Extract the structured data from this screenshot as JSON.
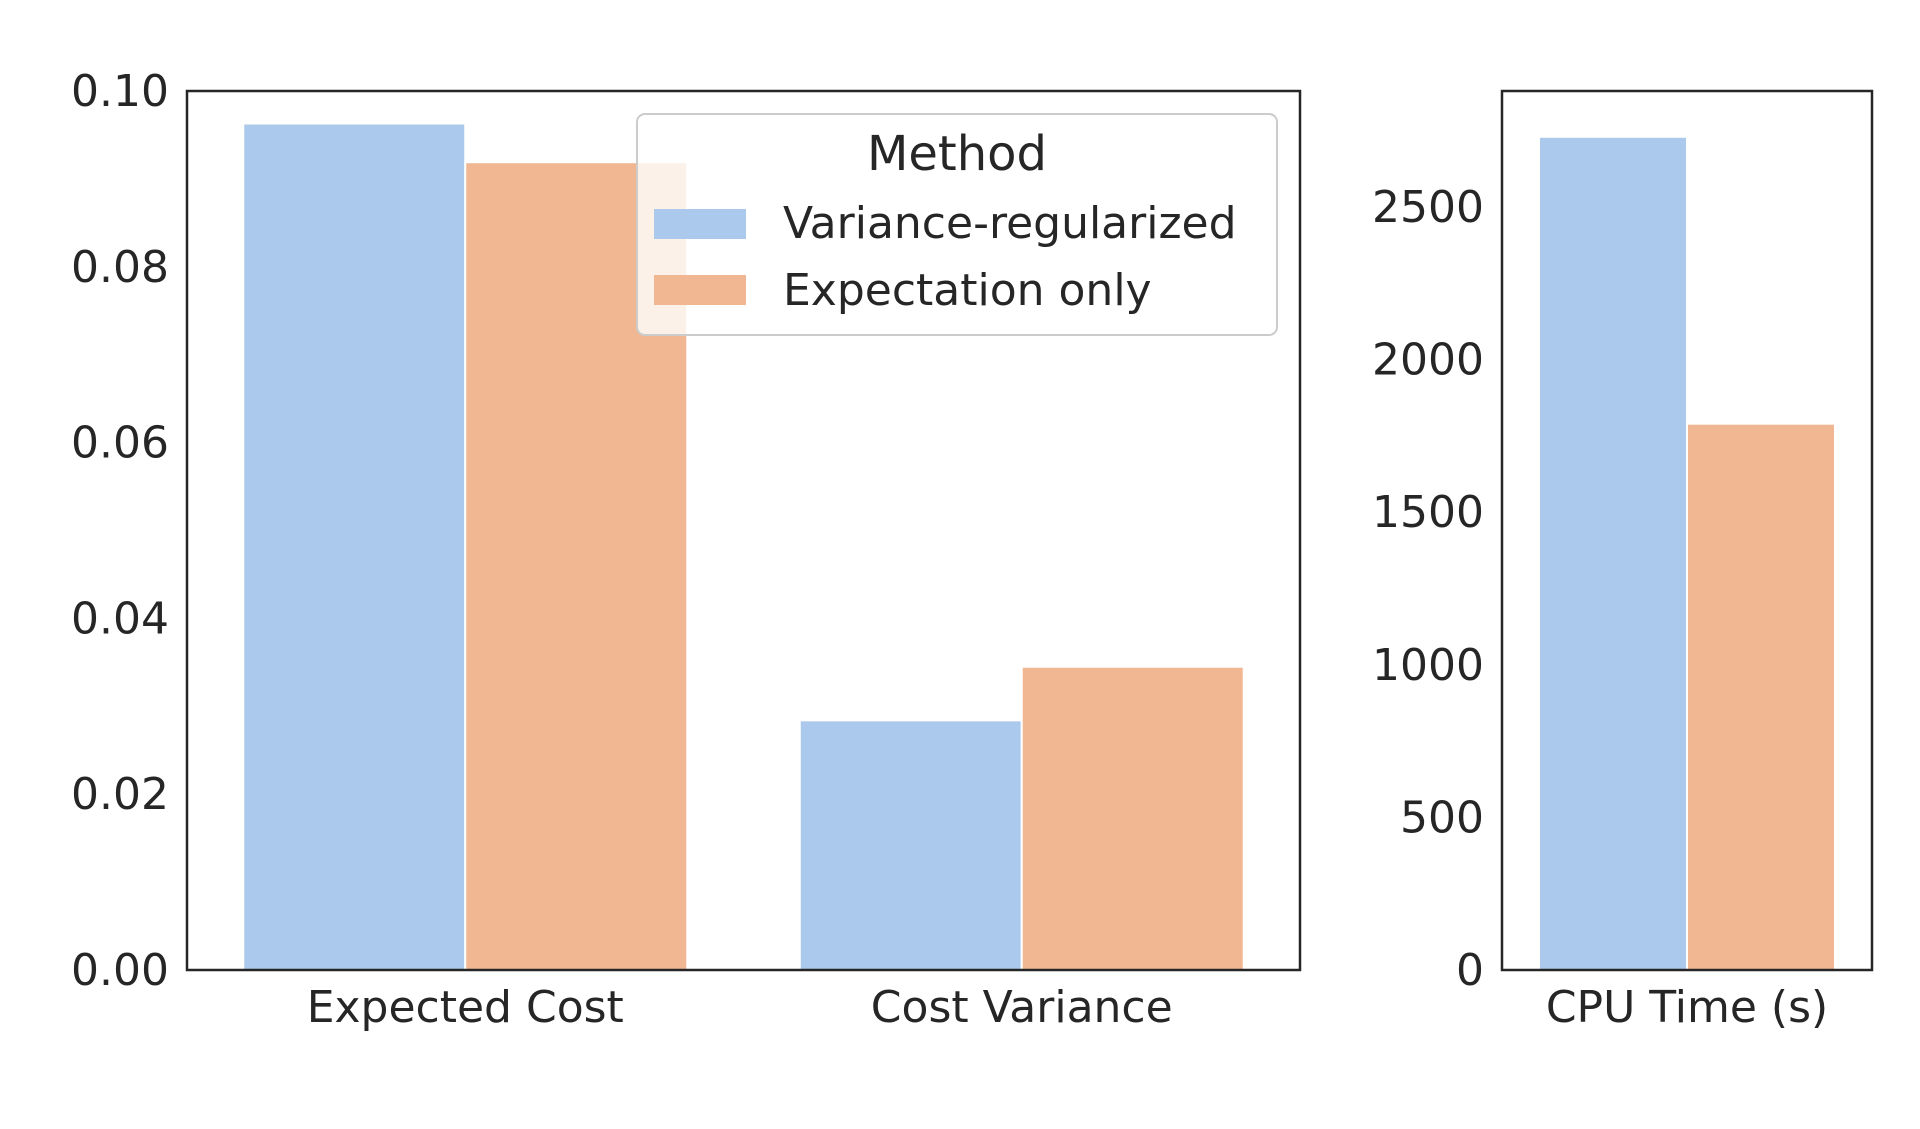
{
  "chart_data": [
    {
      "type": "bar",
      "categories": [
        "Expected Cost",
        "Cost Variance"
      ],
      "series": [
        {
          "name": "Variance-regularized",
          "values": [
            0.0963,
            0.0284
          ],
          "color": "#abc9ec"
        },
        {
          "name": "Expectation only",
          "values": [
            0.0919,
            0.0345
          ],
          "color": "#f0b792"
        }
      ],
      "ylim": [
        0,
        0.1
      ],
      "yticks": [
        "0.00",
        "0.02",
        "0.04",
        "0.06",
        "0.08",
        "0.10"
      ],
      "ytick_values": [
        0,
        0.02,
        0.04,
        0.06,
        0.08,
        0.1
      ],
      "xlabel": "",
      "ylabel": "",
      "grid": false,
      "legend": {
        "title": "Method",
        "placement": "upper-right"
      }
    },
    {
      "type": "bar",
      "categories": [
        "CPU Time (s)"
      ],
      "series": [
        {
          "name": "Variance-regularized",
          "values": [
            2730
          ],
          "color": "#abc9ec"
        },
        {
          "name": "Expectation only",
          "values": [
            1790
          ],
          "color": "#f0b792"
        }
      ],
      "ylim": [
        0,
        2880
      ],
      "yticks": [
        "0",
        "500",
        "1000",
        "1500",
        "2000",
        "2500"
      ],
      "ytick_values": [
        0,
        500,
        1000,
        1500,
        2000,
        2500
      ],
      "xlabel": "",
      "ylabel": "",
      "grid": false
    }
  ]
}
